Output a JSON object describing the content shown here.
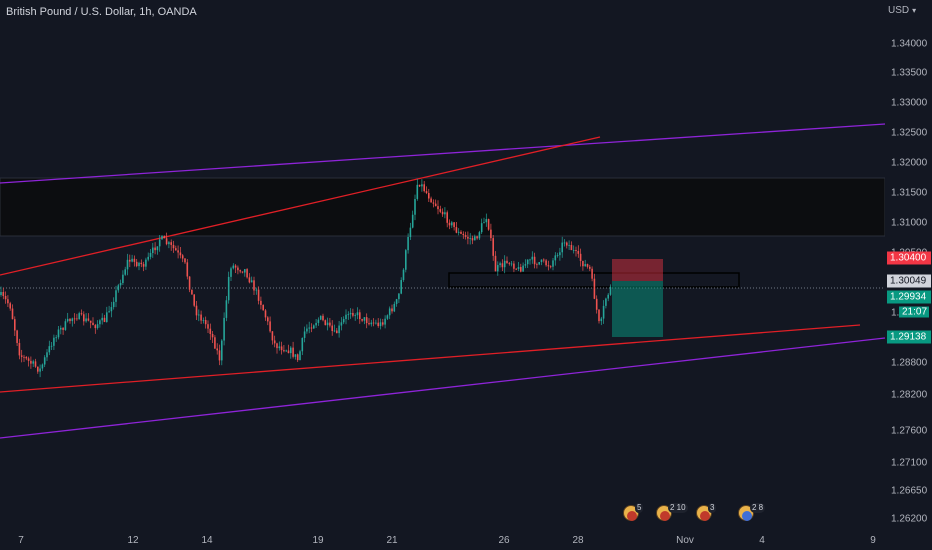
{
  "header": {
    "title": "British Pound / U.S. Dollar, 1h, OANDA"
  },
  "price_axis": {
    "currency": "USD",
    "ticks": [
      "1.34000",
      "1.33500",
      "1.33000",
      "1.32500",
      "1.32000",
      "1.31500",
      "1.31000",
      "1.30500",
      "1.29500",
      "1.28800",
      "1.28200",
      "1.27600",
      "1.27100",
      "1.26650",
      "1.26200"
    ],
    "tags": {
      "stop": "1.30400",
      "entry": "1.30049",
      "last_price": "1.29934",
      "countdown": "21:07",
      "target": "1.29138"
    }
  },
  "time_axis": {
    "labels": [
      "7",
      "12",
      "14",
      "19",
      "21",
      "26",
      "28",
      "Nov",
      "4",
      "9"
    ]
  },
  "events": [
    {
      "count": "5"
    },
    {
      "count": "2 10"
    },
    {
      "count": "3"
    },
    {
      "count": "2 8"
    }
  ],
  "colors": {
    "background": "#131722",
    "bull": "#26a69a",
    "bear": "#ef5350",
    "trend_red": "#e01f26",
    "trend_purple": "#8e24d8",
    "stop_tag": "#f23645",
    "last_tag": "#089981",
    "entry_tag": "#d1d4dc"
  },
  "icons": [
    "currency-dropdown-icon",
    "economic-event-icon"
  ]
}
